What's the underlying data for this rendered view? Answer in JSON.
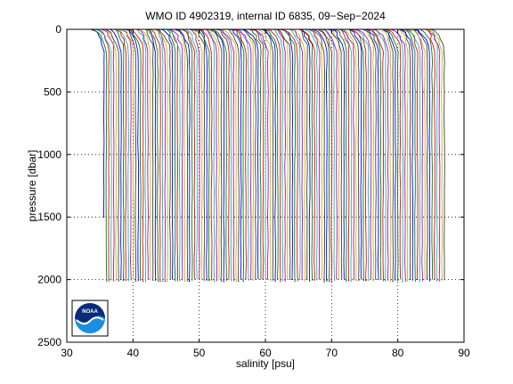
{
  "chart_data": {
    "type": "line",
    "title": "WMO ID 4902319, internal ID 6835, 09−Sep−2024",
    "xlabel": "salinity [psu]",
    "ylabel": "pressure [dbar]",
    "xlim": [
      30,
      90
    ],
    "ylim": [
      0,
      2500
    ],
    "y_reversed": true,
    "grid": true,
    "grid_style": "dotted",
    "xticks": [
      "30",
      "40",
      "50",
      "60",
      "70",
      "80",
      "90"
    ],
    "yticks": [
      "0",
      "500",
      "1000",
      "1500",
      "2000",
      "2500"
    ],
    "profiles": {
      "count": 140,
      "first_offset_psu": 35.6,
      "spacing_psu": 0.37,
      "surface_salinity_start": 33.0,
      "max_pressure_dbar": 2000,
      "colors": [
        "#0000ff",
        "#008000",
        "#ff0000",
        "#00bfbf",
        "#bf00bf",
        "#bfbf00",
        "#404040"
      ]
    },
    "logo": {
      "name": "noaa-logo",
      "text": "NOAA"
    }
  }
}
